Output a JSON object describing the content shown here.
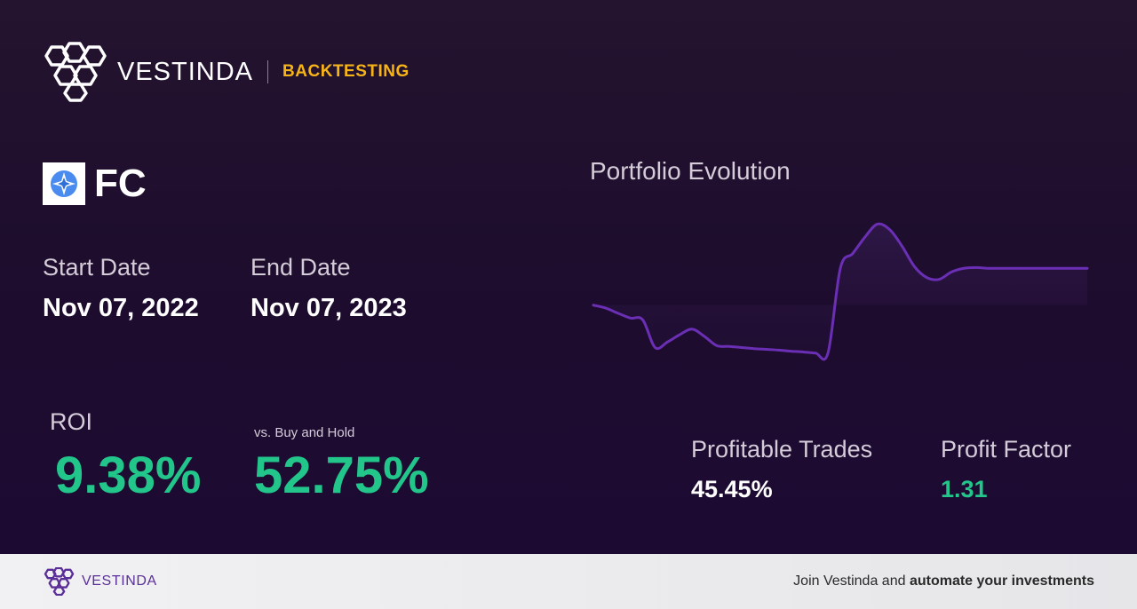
{
  "header": {
    "brand_name": "VESTINDA",
    "section": "BACKTESTING"
  },
  "ticker": {
    "symbol": "FC",
    "icon": "compass-icon"
  },
  "dates": {
    "start_label": "Start Date",
    "start_value": "Nov 07, 2022",
    "end_label": "End Date",
    "end_value": "Nov 07, 2023"
  },
  "roi": {
    "label": "ROI",
    "value": "9.38%",
    "vs_label": "vs. Buy and Hold",
    "vs_value": "52.75%"
  },
  "chart": {
    "title": "Portfolio Evolution"
  },
  "chart_data": {
    "type": "line",
    "title": "Portfolio Evolution",
    "xlabel": "",
    "ylabel": "",
    "grid": false,
    "x": [
      0,
      1,
      2,
      3,
      4,
      5,
      6,
      7,
      8,
      9,
      10,
      11,
      12,
      13,
      14,
      15,
      16,
      17,
      18,
      19,
      20,
      21,
      22,
      23,
      24,
      25,
      26,
      27,
      28,
      29,
      30,
      31,
      32,
      33,
      34,
      35,
      36,
      37,
      38,
      39,
      40
    ],
    "series": [
      {
        "values": [
          100.0,
          99.2,
          97.8,
          96.5,
          96.0,
          88.5,
          90.0,
          92.0,
          93.5,
          91.5,
          89.0,
          88.8,
          88.5,
          88.2,
          88.0,
          87.8,
          87.5,
          87.3,
          87.0,
          87.0,
          110.0,
          114.0,
          118.5,
          122.0,
          120.5,
          116.0,
          110.5,
          107.5,
          107.0,
          109.0,
          110.0,
          110.2,
          110.0,
          110.0,
          110.0,
          110.0,
          110.0,
          110.0,
          110.0,
          110.0,
          110.0
        ]
      }
    ],
    "ylim": [
      85,
      125
    ],
    "colors": {
      "line": "#6a2fb4",
      "fill": "#3a1e5a"
    }
  },
  "metrics": {
    "profitable_label": "Profitable Trades",
    "profitable_value": "45.45%",
    "factor_label": "Profit Factor",
    "factor_value": "1.31"
  },
  "footer": {
    "brand_name": "VESTINDA",
    "cta_prefix": "Join Vestinda and ",
    "cta_bold": "automate your investments"
  },
  "colors": {
    "accent_gold": "#f6b416",
    "positive_green": "#22c58a",
    "brand_purple": "#5b2f98",
    "background": "#1e0d2d"
  }
}
